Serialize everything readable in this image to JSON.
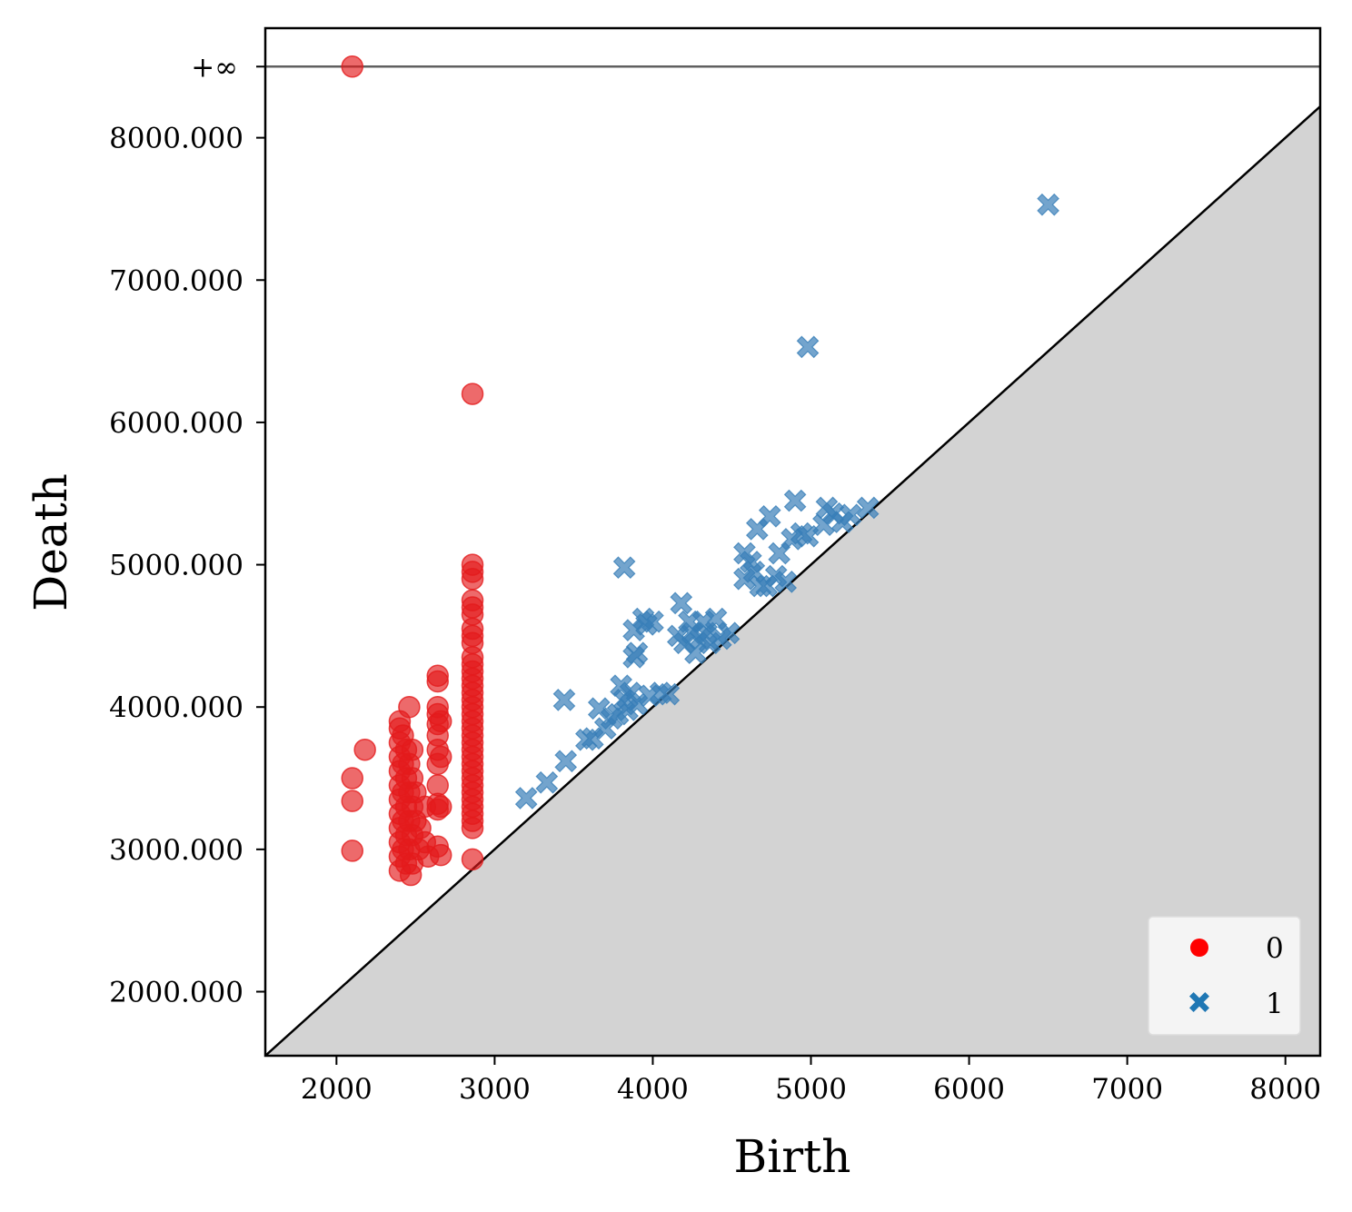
{
  "chart_data": {
    "type": "scatter",
    "title": "",
    "xlabel": "Birth",
    "ylabel": "Death",
    "xlim": [
      1550,
      8220
    ],
    "ylim": [
      1550,
      8770
    ],
    "x_ticks": [
      2000,
      3000,
      4000,
      5000,
      6000,
      7000,
      8000
    ],
    "x_tick_labels": [
      "2000",
      "3000",
      "4000",
      "5000",
      "6000",
      "7000",
      "8000"
    ],
    "y_ticks": [
      2000,
      3000,
      4000,
      5000,
      6000,
      7000,
      8000
    ],
    "y_tick_labels": [
      "2000.000",
      "3000.000",
      "4000.000",
      "5000.000",
      "6000.000",
      "7000.000",
      "8000.000"
    ],
    "infinity_label": "+∞",
    "infinity_value": 8500,
    "diagonal_fill_color": "#d3d3d3",
    "infinity_line_color": "#606060",
    "legend_position": "lower-right",
    "series": [
      {
        "name": "0",
        "marker": "circle",
        "color": "#e41a1c",
        "legend_color": "#ff0000",
        "points": [
          [
            2100,
            8500
          ],
          [
            2860,
            6200
          ],
          [
            2100,
            3500
          ],
          [
            2100,
            3340
          ],
          [
            2100,
            2990
          ],
          [
            2180,
            3700
          ],
          [
            2400,
            3900
          ],
          [
            2400,
            3850
          ],
          [
            2400,
            3750
          ],
          [
            2400,
            3650
          ],
          [
            2400,
            3550
          ],
          [
            2400,
            3450
          ],
          [
            2400,
            3350
          ],
          [
            2400,
            3250
          ],
          [
            2400,
            3150
          ],
          [
            2400,
            3050
          ],
          [
            2400,
            2950
          ],
          [
            2400,
            2850
          ],
          [
            2420,
            3800
          ],
          [
            2420,
            3600
          ],
          [
            2420,
            3400
          ],
          [
            2420,
            3200
          ],
          [
            2420,
            3000
          ],
          [
            2440,
            3700
          ],
          [
            2440,
            3500
          ],
          [
            2440,
            3300
          ],
          [
            2440,
            3100
          ],
          [
            2440,
            2900
          ],
          [
            2460,
            4000
          ],
          [
            2460,
            3600
          ],
          [
            2460,
            3400
          ],
          [
            2460,
            3200
          ],
          [
            2460,
            3000
          ],
          [
            2470,
            2820
          ],
          [
            2480,
            3700
          ],
          [
            2480,
            3500
          ],
          [
            2480,
            3300
          ],
          [
            2480,
            3100
          ],
          [
            2480,
            2900
          ],
          [
            2500,
            3400
          ],
          [
            2500,
            3200
          ],
          [
            2520,
            3000
          ],
          [
            2530,
            3150
          ],
          [
            2560,
            3050
          ],
          [
            2580,
            2950
          ],
          [
            2560,
            3300
          ],
          [
            2640,
            4220
          ],
          [
            2640,
            4180
          ],
          [
            2640,
            4000
          ],
          [
            2640,
            3950
          ],
          [
            2640,
            3880
          ],
          [
            2640,
            3800
          ],
          [
            2640,
            3700
          ],
          [
            2640,
            3600
          ],
          [
            2640,
            3450
          ],
          [
            2640,
            3320
          ],
          [
            2640,
            3280
          ],
          [
            2640,
            3020
          ],
          [
            2660,
            3900
          ],
          [
            2660,
            3650
          ],
          [
            2660,
            3300
          ],
          [
            2660,
            2960
          ],
          [
            2860,
            5000
          ],
          [
            2860,
            4950
          ],
          [
            2860,
            4900
          ],
          [
            2860,
            4750
          ],
          [
            2860,
            4700
          ],
          [
            2860,
            4650
          ],
          [
            2860,
            4550
          ],
          [
            2860,
            4500
          ],
          [
            2860,
            4450
          ],
          [
            2860,
            4350
          ],
          [
            2860,
            4300
          ],
          [
            2860,
            4250
          ],
          [
            2860,
            4200
          ],
          [
            2860,
            4150
          ],
          [
            2860,
            4100
          ],
          [
            2860,
            4050
          ],
          [
            2860,
            4000
          ],
          [
            2860,
            3950
          ],
          [
            2860,
            3900
          ],
          [
            2860,
            3850
          ],
          [
            2860,
            3800
          ],
          [
            2860,
            3750
          ],
          [
            2860,
            3700
          ],
          [
            2860,
            3650
          ],
          [
            2860,
            3600
          ],
          [
            2860,
            3550
          ],
          [
            2860,
            3500
          ],
          [
            2860,
            3450
          ],
          [
            2860,
            3400
          ],
          [
            2860,
            3350
          ],
          [
            2860,
            3300
          ],
          [
            2860,
            3250
          ],
          [
            2860,
            3200
          ],
          [
            2860,
            3150
          ],
          [
            2860,
            2930
          ]
        ]
      },
      {
        "name": "1",
        "marker": "x",
        "color": "#377eb8",
        "legend_color": "#1f77b4",
        "points": [
          [
            6500,
            7530
          ],
          [
            4980,
            6530
          ],
          [
            3820,
            4980
          ],
          [
            3200,
            3360
          ],
          [
            3330,
            3470
          ],
          [
            3450,
            3620
          ],
          [
            3440,
            4050
          ],
          [
            3580,
            3770
          ],
          [
            3620,
            3780
          ],
          [
            3660,
            3990
          ],
          [
            3700,
            3850
          ],
          [
            3740,
            3920
          ],
          [
            3780,
            3950
          ],
          [
            3800,
            4150
          ],
          [
            3820,
            4050
          ],
          [
            3840,
            3980
          ],
          [
            3860,
            4100
          ],
          [
            3900,
            4020
          ],
          [
            3880,
            4350
          ],
          [
            3900,
            4380
          ],
          [
            3880,
            4540
          ],
          [
            3940,
            4620
          ],
          [
            3960,
            4580
          ],
          [
            4000,
            4600
          ],
          [
            3980,
            4080
          ],
          [
            4050,
            4100
          ],
          [
            4100,
            4090
          ],
          [
            4180,
            4730
          ],
          [
            4160,
            4500
          ],
          [
            4200,
            4450
          ],
          [
            4230,
            4600
          ],
          [
            4250,
            4520
          ],
          [
            4270,
            4380
          ],
          [
            4300,
            4480
          ],
          [
            4320,
            4600
          ],
          [
            4340,
            4520
          ],
          [
            4360,
            4450
          ],
          [
            4400,
            4620
          ],
          [
            4430,
            4480
          ],
          [
            4480,
            4520
          ],
          [
            4580,
            5080
          ],
          [
            4580,
            4900
          ],
          [
            4620,
            5020
          ],
          [
            4640,
            4950
          ],
          [
            4660,
            5250
          ],
          [
            4680,
            4850
          ],
          [
            4720,
            4850
          ],
          [
            4740,
            5340
          ],
          [
            4780,
            4920
          ],
          [
            4800,
            5080
          ],
          [
            4840,
            4880
          ],
          [
            4880,
            5180
          ],
          [
            4900,
            5450
          ],
          [
            4940,
            5220
          ],
          [
            4980,
            5200
          ],
          [
            5080,
            5280
          ],
          [
            5100,
            5400
          ],
          [
            5140,
            5360
          ],
          [
            5200,
            5300
          ],
          [
            5250,
            5350
          ],
          [
            5360,
            5400
          ]
        ]
      }
    ]
  }
}
